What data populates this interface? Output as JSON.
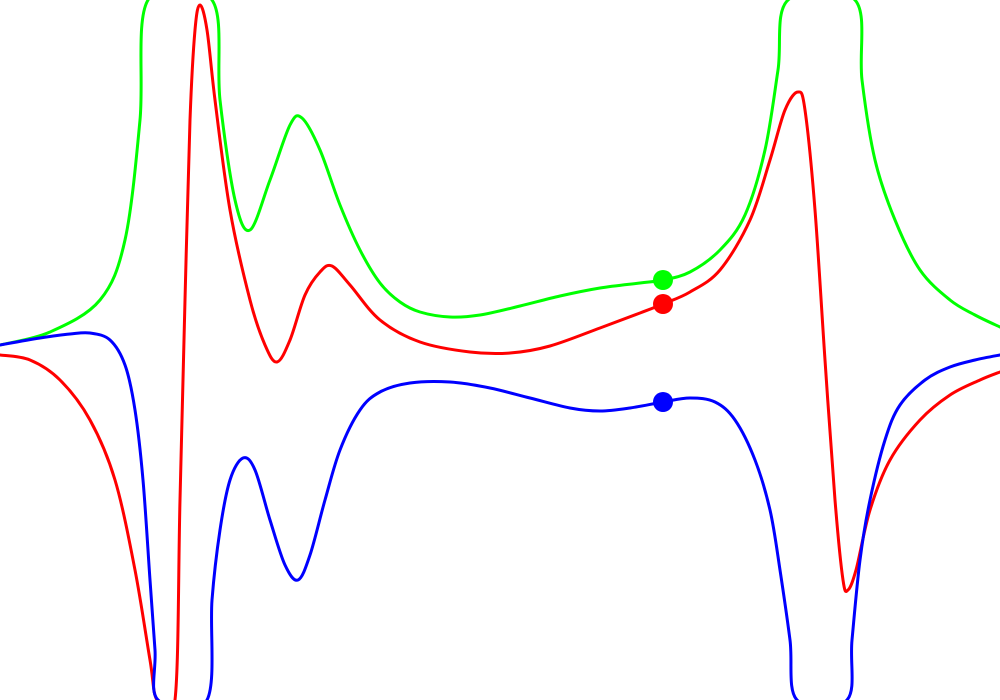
{
  "chart_data": {
    "type": "line",
    "title": "",
    "xlabel": "",
    "ylabel": "",
    "xlim": [
      0,
      1000
    ],
    "ylim": [
      -700,
      0
    ],
    "grid": false,
    "legend": "none",
    "series": [
      {
        "key": "green",
        "color": "#00ff00",
        "points": [
          [
            0,
            -345
          ],
          [
            50,
            -332
          ],
          [
            100,
            -300
          ],
          [
            125,
            -240
          ],
          [
            140,
            -120
          ],
          [
            148,
            0
          ],
          [
            212,
            0
          ],
          [
            220,
            -100
          ],
          [
            235,
            -200
          ],
          [
            250,
            -230
          ],
          [
            270,
            -180
          ],
          [
            290,
            -125
          ],
          [
            302,
            -118
          ],
          [
            320,
            -150
          ],
          [
            340,
            -205
          ],
          [
            360,
            -250
          ],
          [
            380,
            -283
          ],
          [
            400,
            -302
          ],
          [
            420,
            -312
          ],
          [
            450,
            -317
          ],
          [
            480,
            -315
          ],
          [
            520,
            -306
          ],
          [
            560,
            -296
          ],
          [
            600,
            -288
          ],
          [
            640,
            -283
          ],
          [
            663,
            -280
          ],
          [
            690,
            -272
          ],
          [
            720,
            -250
          ],
          [
            745,
            -215
          ],
          [
            765,
            -150
          ],
          [
            778,
            -70
          ],
          [
            788,
            0
          ],
          [
            855,
            0
          ],
          [
            862,
            -80
          ],
          [
            875,
            -160
          ],
          [
            895,
            -220
          ],
          [
            920,
            -270
          ],
          [
            950,
            -300
          ],
          [
            975,
            -315
          ],
          [
            1000,
            -327
          ]
        ],
        "marker": [
          663,
          -280
        ]
      },
      {
        "key": "red",
        "color": "#ff0000",
        "points": [
          [
            0,
            -355
          ],
          [
            30,
            -360
          ],
          [
            60,
            -380
          ],
          [
            90,
            -420
          ],
          [
            115,
            -480
          ],
          [
            135,
            -570
          ],
          [
            150,
            -660
          ],
          [
            157,
            -700
          ],
          [
            175,
            -700
          ],
          [
            180,
            -500
          ],
          [
            185,
            -300
          ],
          [
            190,
            -120
          ],
          [
            195,
            -30
          ],
          [
            200,
            -5
          ],
          [
            207,
            -30
          ],
          [
            215,
            -100
          ],
          [
            230,
            -210
          ],
          [
            250,
            -300
          ],
          [
            265,
            -345
          ],
          [
            277,
            -362
          ],
          [
            290,
            -340
          ],
          [
            305,
            -295
          ],
          [
            320,
            -272
          ],
          [
            332,
            -266
          ],
          [
            350,
            -285
          ],
          [
            380,
            -320
          ],
          [
            420,
            -342
          ],
          [
            470,
            -352
          ],
          [
            510,
            -353
          ],
          [
            550,
            -346
          ],
          [
            600,
            -328
          ],
          [
            640,
            -313
          ],
          [
            663,
            -304
          ],
          [
            690,
            -292
          ],
          [
            720,
            -270
          ],
          [
            750,
            -220
          ],
          [
            770,
            -160
          ],
          [
            785,
            -110
          ],
          [
            798,
            -92
          ],
          [
            805,
            -110
          ],
          [
            815,
            -210
          ],
          [
            825,
            -360
          ],
          [
            835,
            -500
          ],
          [
            843,
            -580
          ],
          [
            848,
            -590
          ],
          [
            856,
            -570
          ],
          [
            870,
            -510
          ],
          [
            890,
            -460
          ],
          [
            920,
            -420
          ],
          [
            950,
            -395
          ],
          [
            980,
            -380
          ],
          [
            1000,
            -372
          ]
        ],
        "marker": [
          663,
          -304
        ]
      },
      {
        "key": "blue",
        "color": "#0000ff",
        "points": [
          [
            0,
            -345
          ],
          [
            40,
            -338
          ],
          [
            70,
            -334
          ],
          [
            90,
            -333
          ],
          [
            110,
            -340
          ],
          [
            125,
            -365
          ],
          [
            135,
            -410
          ],
          [
            143,
            -480
          ],
          [
            150,
            -580
          ],
          [
            155,
            -650
          ],
          [
            158,
            -700
          ],
          [
            207,
            -700
          ],
          [
            212,
            -600
          ],
          [
            220,
            -530
          ],
          [
            230,
            -480
          ],
          [
            243,
            -458
          ],
          [
            255,
            -470
          ],
          [
            270,
            -520
          ],
          [
            285,
            -565
          ],
          [
            298,
            -580
          ],
          [
            310,
            -555
          ],
          [
            325,
            -500
          ],
          [
            340,
            -450
          ],
          [
            360,
            -410
          ],
          [
            380,
            -392
          ],
          [
            410,
            -383
          ],
          [
            450,
            -382
          ],
          [
            490,
            -388
          ],
          [
            530,
            -398
          ],
          [
            570,
            -408
          ],
          [
            600,
            -411
          ],
          [
            630,
            -408
          ],
          [
            663,
            -402
          ],
          [
            690,
            -398
          ],
          [
            715,
            -402
          ],
          [
            735,
            -420
          ],
          [
            755,
            -460
          ],
          [
            770,
            -510
          ],
          [
            780,
            -570
          ],
          [
            790,
            -640
          ],
          [
            797,
            -700
          ],
          [
            847,
            -700
          ],
          [
            852,
            -640
          ],
          [
            860,
            -560
          ],
          [
            870,
            -500
          ],
          [
            885,
            -440
          ],
          [
            900,
            -405
          ],
          [
            925,
            -380
          ],
          [
            950,
            -367
          ],
          [
            975,
            -360
          ],
          [
            1000,
            -355
          ]
        ],
        "marker": [
          663,
          -402
        ]
      }
    ]
  }
}
